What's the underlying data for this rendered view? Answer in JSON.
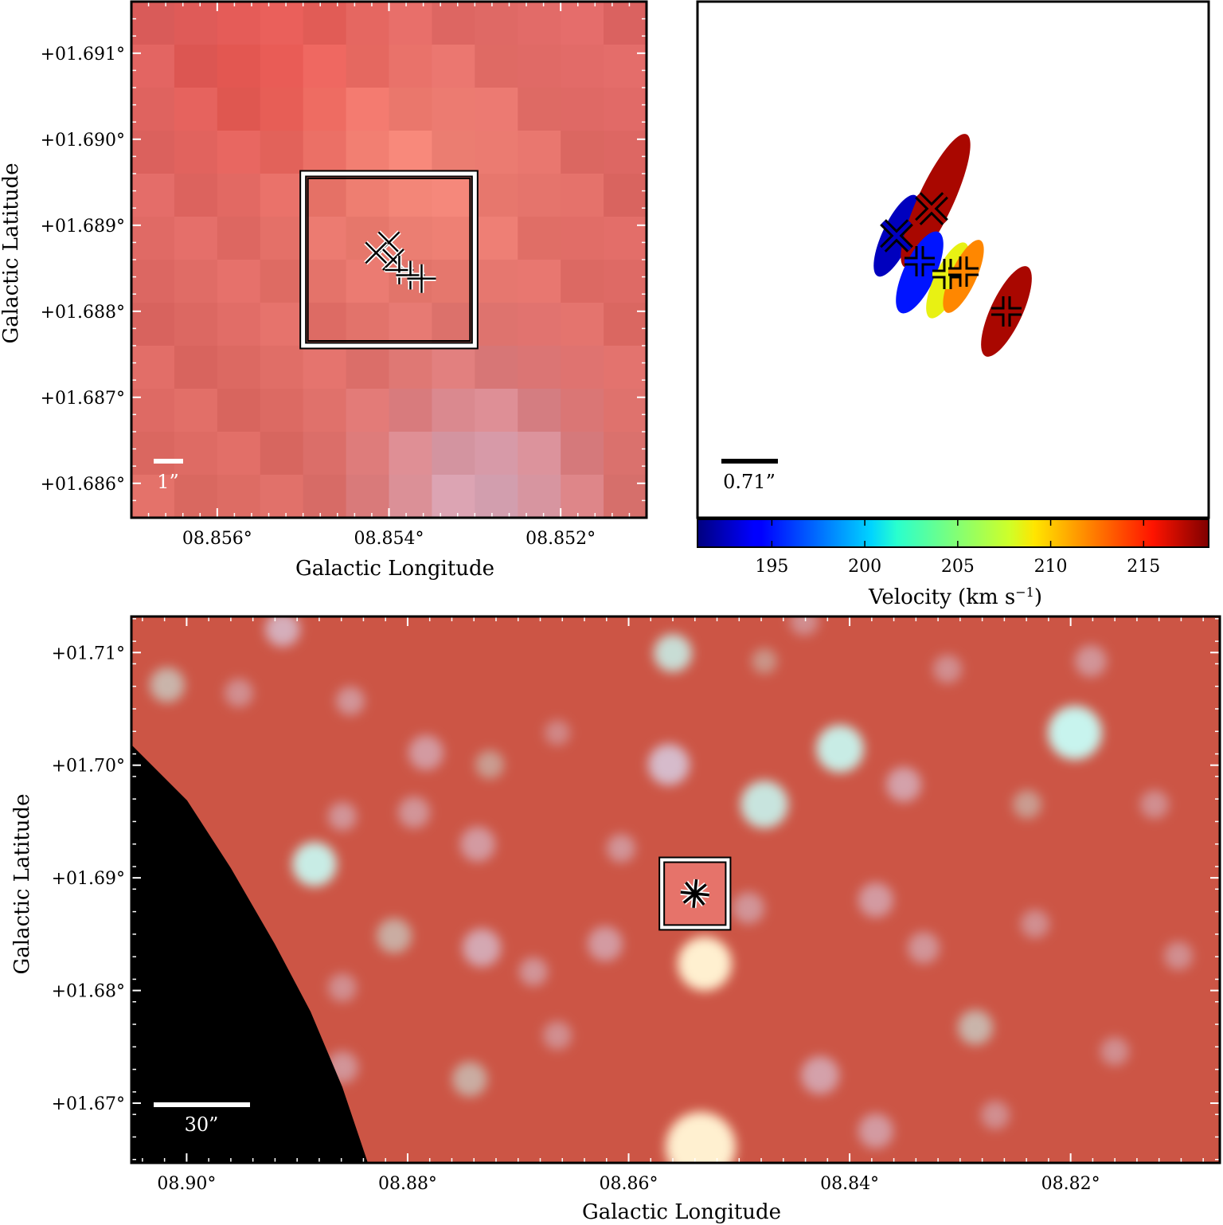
{
  "chart_data": [
    {
      "type": "image",
      "panel": "top-left",
      "xlabel": "Galactic Longitude",
      "ylabel": "Galactic Latitude",
      "xlim": [
        8.857,
        8.851
      ],
      "ylim": [
        1.6856,
        1.6916
      ],
      "xticks": [
        8.856,
        8.854,
        8.852
      ],
      "yticks": [
        1.686,
        1.687,
        1.688,
        1.689,
        1.69,
        1.691
      ],
      "xtick_labels": [
        "08.856°",
        "08.854°",
        "08.852°"
      ],
      "ytick_labels": [
        "+01.686°",
        "+01.687°",
        "+01.688°",
        "+01.689°",
        "+01.690°",
        "+01.691°"
      ],
      "scale_bar": "1”",
      "zoom_box": {
        "l": [
          8.855,
          8.853
        ],
        "b": [
          1.6876,
          1.6896
        ]
      },
      "markers": [
        {
          "symbol": "x",
          "l": 8.854,
          "b": 1.6888
        },
        {
          "symbol": "x",
          "l": 8.85415,
          "b": 1.68868
        },
        {
          "symbol": "x",
          "l": 8.85395,
          "b": 1.6886
        },
        {
          "symbol": "+",
          "l": 8.85388,
          "b": 1.68848
        },
        {
          "symbol": "+",
          "l": 8.85375,
          "b": 1.68842
        },
        {
          "symbol": "+",
          "l": 8.85362,
          "b": 1.68838
        }
      ]
    },
    {
      "type": "scatter",
      "panel": "top-right",
      "scale_bar": "0.71”",
      "colorbar": {
        "label": "Velocity (km s",
        "label_sup": "−1",
        "label_end": ")",
        "range": [
          191,
          218.5
        ],
        "ticks": [
          195,
          200,
          205,
          210,
          215
        ],
        "tick_labels": [
          "195",
          "200",
          "205",
          "210",
          "215"
        ]
      },
      "spots": [
        {
          "symbol": "x",
          "velocity": 192.5,
          "cx": 1126,
          "cy": 296
        },
        {
          "symbol": "x",
          "velocity": 217.5,
          "cx": 1170,
          "cy": 262
        },
        {
          "symbol": "+",
          "velocity": 195.0,
          "cx": 1155,
          "cy": 328
        },
        {
          "symbol": "+",
          "velocity": 208.5,
          "cx": 1190,
          "cy": 344
        },
        {
          "symbol": "+",
          "velocity": 212.0,
          "cx": 1210,
          "cy": 341
        },
        {
          "symbol": "+",
          "velocity": 217.5,
          "cx": 1264,
          "cy": 391
        }
      ]
    },
    {
      "type": "image",
      "panel": "bottom",
      "xlabel": "Galactic Longitude",
      "ylabel": "Galactic Latitude",
      "xlim": [
        8.905,
        8.8065
      ],
      "ylim": [
        1.6647,
        1.7132
      ],
      "xticks": [
        8.9,
        8.88,
        8.86,
        8.84,
        8.82
      ],
      "yticks": [
        1.67,
        1.68,
        1.69,
        1.7,
        1.71
      ],
      "xtick_labels": [
        "08.90°",
        "08.88°",
        "08.86°",
        "08.84°",
        "08.82°"
      ],
      "ytick_labels": [
        "+01.67°",
        "+01.68°",
        "+01.69°",
        "+01.70°",
        "+01.71°"
      ],
      "scale_bar": "30”",
      "zoom_box": {
        "l": [
          8.857,
          8.851
        ],
        "b": [
          1.6856,
          1.6916
        ]
      }
    }
  ],
  "colors": {
    "background_red": "#d15a48",
    "no_data": "#000000",
    "marker_outline": "#000000",
    "box_outline": "#ffffff"
  }
}
